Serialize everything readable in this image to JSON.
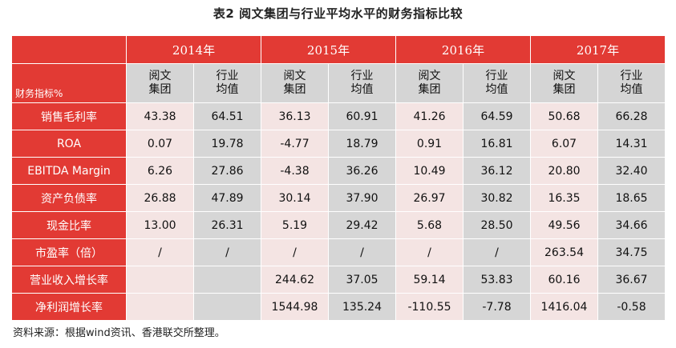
{
  "title": "表2 阅文集团与行业平均水平的财务指标比较",
  "corner_label": "财务指标%",
  "years": [
    "2014年",
    "2015年",
    "2016年",
    "2017年"
  ],
  "subheaders": [
    "阅文\n集团",
    "行业\n均值"
  ],
  "rows": [
    {
      "label": "销售毛利率",
      "values": [
        "43.38",
        "64.51",
        "36.13",
        "60.91",
        "41.26",
        "64.59",
        "50.68",
        "66.28"
      ]
    },
    {
      "label": "ROA",
      "values": [
        "0.07",
        "19.78",
        "-4.77",
        "18.79",
        "0.91",
        "16.81",
        "6.07",
        "14.31"
      ]
    },
    {
      "label": "EBITDA Margin",
      "values": [
        "6.26",
        "27.86",
        "-4.38",
        "36.26",
        "10.49",
        "36.12",
        "20.80",
        "32.40"
      ]
    },
    {
      "label": "资产负债率",
      "values": [
        "26.88",
        "47.89",
        "30.14",
        "37.90",
        "26.97",
        "30.82",
        "16.35",
        "18.65"
      ]
    },
    {
      "label": "现金比率",
      "values": [
        "13.00",
        "26.31",
        "5.19",
        "29.42",
        "5.68",
        "28.50",
        "49.56",
        "34.66"
      ]
    },
    {
      "label": "市盈率（倍）",
      "values": [
        "/",
        "/",
        "/",
        "/",
        "/",
        "/",
        "263.54",
        "34.75"
      ]
    },
    {
      "label": "营业收入增长率",
      "values": [
        "",
        "",
        "244.62",
        "37.05",
        "59.14",
        "53.83",
        "60.16",
        "36.67"
      ]
    },
    {
      "label": "净利润增长率",
      "values": [
        "",
        "",
        "1544.98",
        "135.24",
        "-110.55",
        "-7.78",
        "1416.04",
        "-0.58"
      ]
    }
  ],
  "source_note": "资料来源：根据wind资讯、香港联交所整理。",
  "colors": {
    "header_red": "#e23a34",
    "light_pink": "#f4e4e3",
    "gray": "#d6d6d6"
  }
}
